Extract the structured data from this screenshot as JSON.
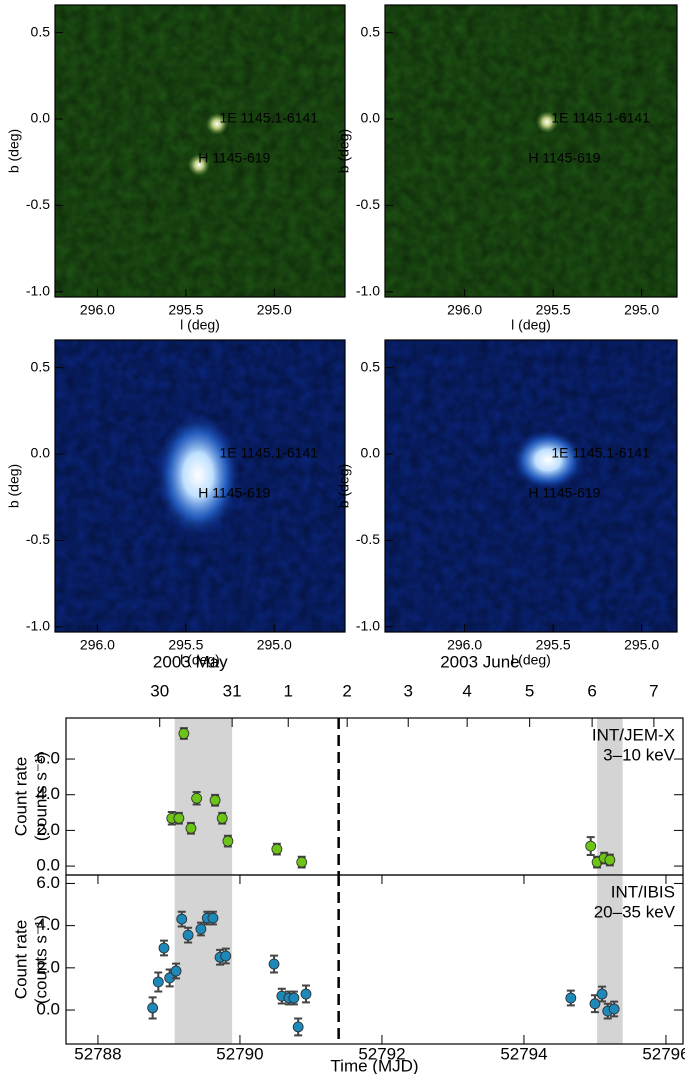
{
  "chart_data": [
    {
      "type": "image",
      "xlabel": "l (deg)",
      "ylabel": "b (deg)",
      "color": "#1f5714",
      "xlim": [
        296.24,
        294.6
      ],
      "ylim": [
        -1.03,
        0.66
      ],
      "xticks": [
        {
          "value": 296.0,
          "label": "296.0"
        },
        {
          "value": 295.5,
          "label": "295.5"
        },
        {
          "value": 295.0,
          "label": "295.0"
        }
      ],
      "yticks": [
        0.5,
        {
          "value": 0.0,
          "label": "0.0"
        },
        -0.5,
        {
          "value": -1.0,
          "label": "-1.0"
        }
      ],
      "sources": [
        {
          "label": "1E 1145.1-6141",
          "l": 295.31,
          "b": 0.0
        },
        {
          "label": "H 1145-619",
          "l": 295.43,
          "b": -0.23
        }
      ]
    },
    {
      "type": "image",
      "xlabel": "l (deg)",
      "ylabel": "b (deg)",
      "color": "#1f5714",
      "xlim": [
        296.45,
        294.8
      ],
      "ylim": [
        -1.03,
        0.66
      ],
      "xticks": [
        {
          "value": 296.0,
          "label": "296.0"
        },
        {
          "value": 295.5,
          "label": "295.5"
        },
        {
          "value": 295.0,
          "label": "295.0"
        }
      ],
      "yticks": [
        0.5,
        {
          "value": 0.0,
          "label": "0.0"
        },
        -0.5,
        {
          "value": -1.0,
          "label": "-1.0"
        }
      ],
      "sources": [
        {
          "label": "1E 1145.1-6141",
          "l": 295.51,
          "b": 0.0
        },
        {
          "label": "H 1145-619",
          "l": 295.64,
          "b": -0.23
        }
      ]
    },
    {
      "type": "image",
      "xlabel": "l (deg)",
      "ylabel": "b (deg)",
      "color": "#0a2680",
      "xlim": [
        296.24,
        294.6
      ],
      "ylim": [
        -1.03,
        0.66
      ],
      "xticks": [
        {
          "value": 296.0,
          "label": "296.0"
        },
        {
          "value": 295.5,
          "label": "295.5"
        },
        {
          "value": 295.0,
          "label": "295.0"
        }
      ],
      "yticks": [
        0.5,
        {
          "value": 0.0,
          "label": "0.0"
        },
        -0.5,
        {
          "value": -1.0,
          "label": "-1.0"
        }
      ],
      "sources": [
        {
          "label": "1E 1145.1-6141",
          "l": 295.31,
          "b": 0.0
        },
        {
          "label": "H 1145-619",
          "l": 295.43,
          "b": -0.23
        }
      ]
    },
    {
      "type": "image",
      "xlabel": "l (deg)",
      "ylabel": "b (deg)",
      "color": "#0a2680",
      "xlim": [
        296.45,
        294.8
      ],
      "ylim": [
        -1.03,
        0.66
      ],
      "xticks": [
        {
          "value": 296.0,
          "label": "296.0"
        },
        {
          "value": 295.5,
          "label": "295.5"
        },
        {
          "value": 295.0,
          "label": "295.0"
        }
      ],
      "yticks": [
        0.5,
        {
          "value": 0.0,
          "label": "0.0"
        },
        -0.5,
        {
          "value": -1.0,
          "label": "-1.0"
        }
      ],
      "sources": [
        {
          "label": "1E 1145.1-6141",
          "l": 295.51,
          "b": 0.0
        },
        {
          "label": "H 1145-619",
          "l": 295.64,
          "b": -0.23
        }
      ]
    },
    {
      "type": "scatter",
      "ylabel": [
        "Count rate",
        "(counts s⁻¹)"
      ],
      "xlim": [
        52787.55,
        52796.24
      ],
      "ylim": [
        -0.5,
        8.3
      ],
      "yticks": [
        {
          "value": 0.0,
          "label": "0.0"
        },
        {
          "value": 2.0,
          "label": "2.0"
        },
        {
          "value": 4.0,
          "label": "4.0"
        },
        {
          "value": 6.0,
          "label": "6.0"
        }
      ],
      "top_labels": [
        {
          "value": 52789.3,
          "label": "2003 May"
        },
        {
          "value": 52793.38,
          "label": "2003 June"
        }
      ],
      "x2ticks": [
        {
          "value": 52788.87,
          "label": "30"
        },
        {
          "value": 52789.89,
          "label": "31"
        },
        {
          "value": 52790.68,
          "label": "1"
        },
        {
          "value": 52791.51,
          "label": "2"
        },
        {
          "value": 52792.37,
          "label": "3"
        },
        {
          "value": 52793.2,
          "label": "4"
        },
        {
          "value": 52794.08,
          "label": "5"
        },
        {
          "value": 52794.96,
          "label": "6"
        },
        {
          "value": 52795.83,
          "label": "7"
        }
      ],
      "shaded": [
        [
          52789.08,
          52789.89
        ],
        [
          52795.03,
          52795.39
        ]
      ],
      "vlines": [
        52791.39
      ],
      "series": [
        {
          "name": "INT/JEM-X",
          "annotation": "3–10 keV",
          "color": "#6cc417",
          "x": [
            52789.04,
            52789.14,
            52789.21,
            52789.31,
            52789.39,
            52789.65,
            52789.75,
            52789.83,
            52790.52,
            52790.87,
            52794.94,
            52795.03,
            52795.13,
            52795.21
          ],
          "values": [
            2.68,
            2.68,
            7.43,
            2.12,
            3.8,
            3.69,
            2.68,
            1.4,
            0.95,
            0.22,
            1.12,
            0.22,
            0.45,
            0.34
          ],
          "errors": [
            0.35,
            0.3,
            0.3,
            0.3,
            0.35,
            0.3,
            0.3,
            0.3,
            0.3,
            0.3,
            0.5,
            0.3,
            0.3,
            0.3
          ]
        }
      ]
    },
    {
      "type": "scatter",
      "ylabel": [
        "Count rate",
        "(counts s⁻¹)"
      ],
      "xlabel": "Time (MJD)",
      "xlim": [
        52787.55,
        52796.24
      ],
      "ylim": [
        -1.61,
        6.4
      ],
      "xticks": [
        52788,
        52790,
        52792,
        52794,
        52796
      ],
      "yticks": [
        {
          "value": 0.0,
          "label": "0.0"
        },
        {
          "value": 2.0,
          "label": "2.0"
        },
        {
          "value": 4.0,
          "label": "4.0"
        },
        {
          "value": 6.0,
          "label": "6.0"
        }
      ],
      "shaded": [
        [
          52789.08,
          52789.89
        ],
        [
          52795.03,
          52795.39
        ]
      ],
      "vlines": [
        52791.39
      ],
      "series": [
        {
          "name": "INT/IBIS",
          "annotation": "20–35 keV",
          "color": "#1e88b8",
          "x": [
            52788.77,
            52788.85,
            52788.93,
            52789.01,
            52789.1,
            52789.18,
            52789.27,
            52789.45,
            52789.54,
            52789.62,
            52789.72,
            52789.8,
            52790.48,
            52790.59,
            52790.69,
            52790.76,
            52790.82,
            52790.93,
            52794.66,
            52795.0,
            52795.1,
            52795.18,
            52795.27
          ],
          "values": [
            0.1,
            1.33,
            2.94,
            1.52,
            1.85,
            4.31,
            3.55,
            3.84,
            4.36,
            4.36,
            2.5,
            2.56,
            2.18,
            0.66,
            0.57,
            0.57,
            -0.8,
            0.76,
            0.57,
            0.3,
            0.76,
            -0.05,
            0.05
          ],
          "errors": [
            0.5,
            0.45,
            0.35,
            0.4,
            0.35,
            0.35,
            0.35,
            0.3,
            0.3,
            0.3,
            0.35,
            0.35,
            0.4,
            0.35,
            0.3,
            0.3,
            0.4,
            0.4,
            0.35,
            0.4,
            0.35,
            0.35,
            0.35
          ]
        }
      ]
    }
  ]
}
